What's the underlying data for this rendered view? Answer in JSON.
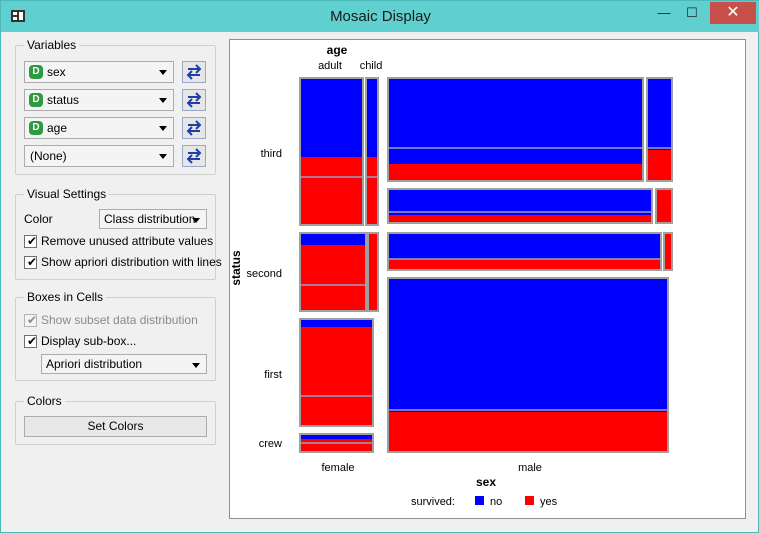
{
  "window": {
    "title": "Mosaic Display",
    "minimize": "—",
    "maximize": "☐",
    "close": "✕"
  },
  "variables": {
    "title": "Variables",
    "rows": [
      {
        "badge": "D",
        "value": "sex"
      },
      {
        "badge": "D",
        "value": "status"
      },
      {
        "badge": "D",
        "value": "age"
      },
      {
        "badge": "",
        "value": "(None)"
      }
    ]
  },
  "visual_settings": {
    "title": "Visual Settings",
    "color_label": "Color",
    "color_value": "Class distribution",
    "remove_unused": "Remove unused attribute values",
    "show_apriori": "Show apriori distribution with lines"
  },
  "boxes": {
    "title": "Boxes in Cells",
    "show_subset": "Show subset data distribution",
    "display_subbox": "Display sub-box...",
    "subbox_value": "Apriori distribution"
  },
  "colors": {
    "title": "Colors",
    "button": "Set Colors"
  },
  "plot": {
    "age_title": "age",
    "age_adult": "adult",
    "age_child": "child",
    "status_title": "status",
    "status_third": "third",
    "status_second": "second",
    "status_first": "first",
    "status_crew": "crew",
    "sex_female": "female",
    "sex_male": "male",
    "sex_title": "sex",
    "legend_title": "survived:",
    "legend_no": "no",
    "legend_yes": "yes",
    "color_no": "#0000ff",
    "color_yes": "#ff0000"
  }
}
